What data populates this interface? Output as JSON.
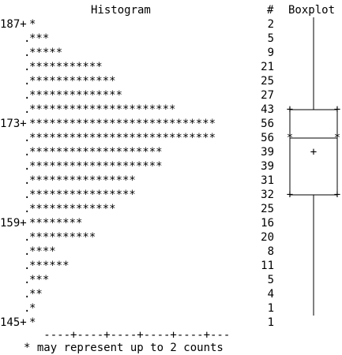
{
  "chart_data": {
    "type": "bar",
    "title": "Histogram",
    "count_header": "#",
    "boxplot_title": "Boxplot",
    "footnote": "* may represent up to 2 counts",
    "bins": [
      {
        "label": "187+",
        "counts": 2
      },
      {
        "label": "",
        "counts": 5
      },
      {
        "label": "",
        "counts": 9
      },
      {
        "label": "",
        "counts": 21
      },
      {
        "label": "",
        "counts": 25
      },
      {
        "label": "",
        "counts": 27
      },
      {
        "label": "",
        "counts": 43
      },
      {
        "label": "173+",
        "counts": 56
      },
      {
        "label": "",
        "counts": 56
      },
      {
        "label": "",
        "counts": 39
      },
      {
        "label": "",
        "counts": 39
      },
      {
        "label": "",
        "counts": 31
      },
      {
        "label": "",
        "counts": 32
      },
      {
        "label": "",
        "counts": 25
      },
      {
        "label": "159+",
        "counts": 16
      },
      {
        "label": "",
        "counts": 20
      },
      {
        "label": "",
        "counts": 8
      },
      {
        "label": "",
        "counts": 11
      },
      {
        "label": "",
        "counts": 5
      },
      {
        "label": "",
        "counts": 4
      },
      {
        "label": "",
        "counts": 1
      },
      {
        "label": "145+",
        "counts": 1
      }
    ],
    "boxplot": {
      "whisker_top_bin": 0,
      "q3_bin": 6,
      "median_bin": 8,
      "mean_bin": 9,
      "q1_bin": 12,
      "whisker_bottom_bin": 20,
      "outlier_bin": 21,
      "outlier_symbol": "0",
      "mean_symbol": "+"
    }
  }
}
